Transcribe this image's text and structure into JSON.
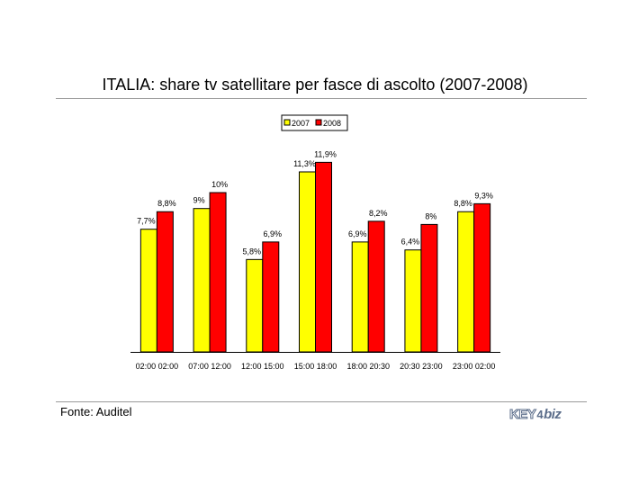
{
  "title": "ITALIA: share tv satellitare per fasce di ascolto (2007-2008)",
  "source": "Fonte: Auditel",
  "logo": {
    "part1": "KEY",
    "mark": "4",
    "part2": "biz"
  },
  "chart_data": {
    "type": "bar",
    "title": "ITALIA: share tv satellitare per fasce di ascolto (2007-2008)",
    "categories": [
      "02:00 02:00",
      "07:00 12:00",
      "12:00 15:00",
      "15:00 18:00",
      "18:00 20:30",
      "20:30 23:00",
      "23:00 02:00"
    ],
    "series": [
      {
        "name": "2007",
        "color": "#ffff00",
        "values": [
          7.7,
          9,
          5.8,
          11.3,
          6.9,
          6.4,
          8.8
        ],
        "labels": [
          "7,7%",
          "9%",
          "5,8%",
          "11,3%",
          "6,9%",
          "6,4%",
          "8,8%"
        ]
      },
      {
        "name": "2008",
        "color": "#ff0000",
        "values": [
          8.8,
          10,
          6.9,
          11.9,
          8.2,
          8,
          9.3
        ],
        "labels": [
          "8,8%",
          "10%",
          "6,9%",
          "11,9%",
          "8,2%",
          "8%",
          "9,3%"
        ]
      }
    ],
    "xlabel": "",
    "ylabel": "",
    "ylim": [
      0,
      12
    ],
    "grid": false,
    "legend": "top-center"
  }
}
